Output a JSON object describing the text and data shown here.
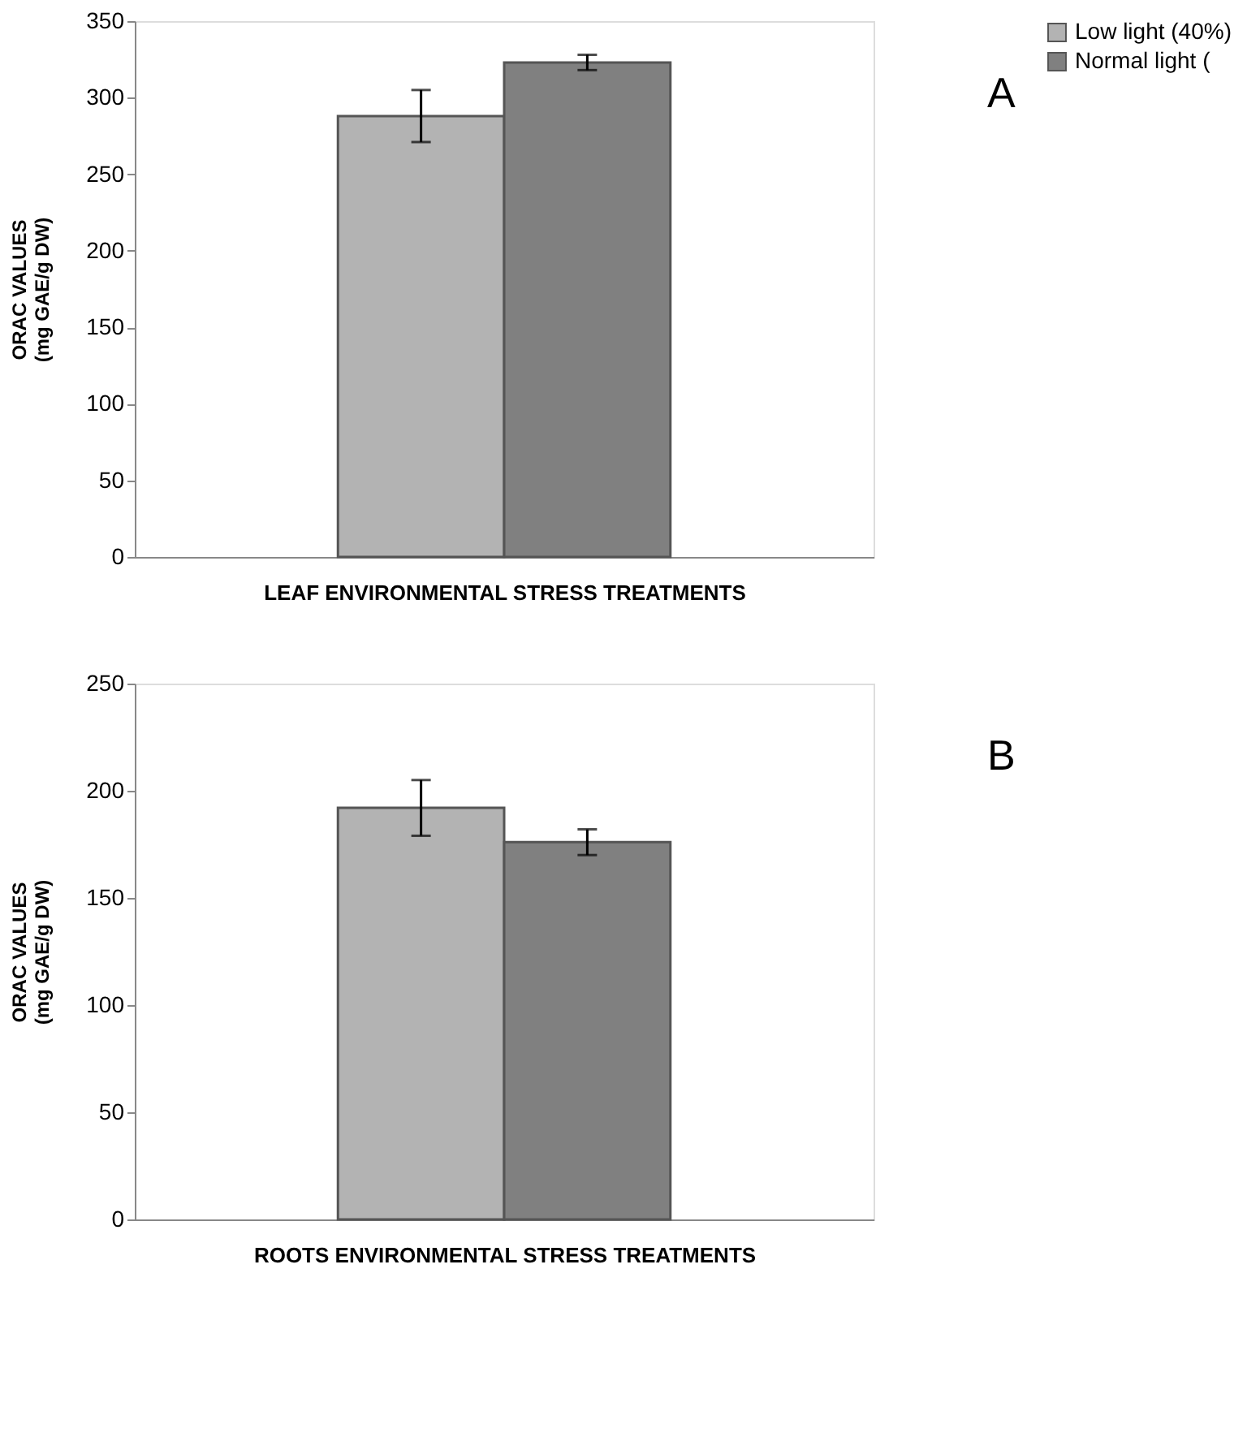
{
  "chart_data": [
    {
      "type": "bar",
      "categories": [
        null
      ],
      "xlabel": "LEAF ENVIRONMENTAL  STRESS  TREATMENTS",
      "ylabel": "ORAC VALUES\n(mg GAE/g DW)",
      "annotations": [
        "A"
      ],
      "series": [
        {
          "name": "Low light (40%)",
          "color": "#b3b3b3",
          "values": [
            288
          ],
          "errors": [
            17
          ]
        },
        {
          "name": "Normal light (",
          "color": "#808080",
          "values": [
            323
          ],
          "errors": [
            5
          ]
        }
      ],
      "ylim": [
        0,
        350
      ],
      "yticks": [
        0,
        50,
        100,
        150,
        200,
        250,
        300,
        350
      ],
      "grid": false,
      "legend": "right"
    },
    {
      "type": "bar",
      "categories": [
        null
      ],
      "xlabel": "ROOTS ENVIRONMENTAL  STRESS  TREATMENTS",
      "ylabel": "ORAC VALUES\n(mg GAE/g DW)",
      "annotations": [
        "B"
      ],
      "series": [
        {
          "name": "Low light (40%)",
          "color": "#b3b3b3",
          "values": [
            192
          ],
          "errors": [
            13
          ]
        },
        {
          "name": "Normal light (",
          "color": "#808080",
          "values": [
            176
          ],
          "errors": [
            6
          ]
        }
      ],
      "ylim": [
        0,
        250
      ],
      "yticks": [
        0,
        50,
        100,
        150,
        200,
        250
      ],
      "grid": false,
      "legend": "right"
    }
  ]
}
